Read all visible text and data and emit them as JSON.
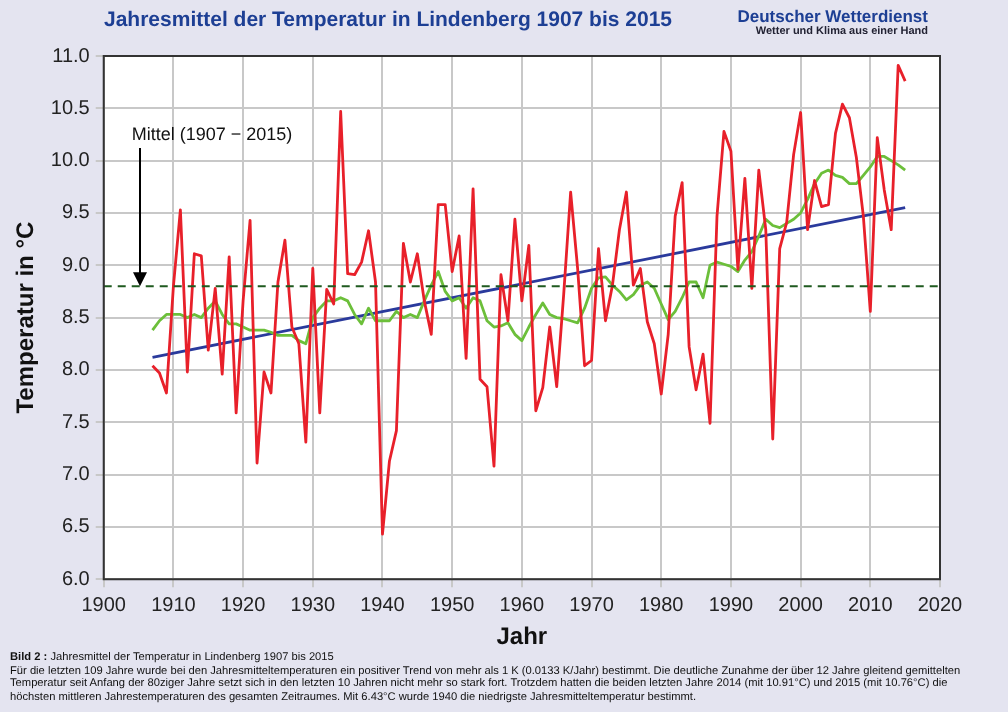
{
  "chart_data": {
    "type": "line",
    "title": "Jahresmittel der Temperatur in Lindenberg 1907 bis 2015",
    "xlabel": "Jahr",
    "ylabel": "Temperatur in °C",
    "annotations": [
      "Deutscher Wetterdienst",
      "Wetter und Klima aus einer Hand",
      "Bild 2 :",
      "Jahresmittel der Temperatur in Lindenberg 1907 bis 2015",
      "Für die letzten 109 Jahre wurde bei den Jahresmitteltemperaturen ein positiver Trend von mehr als 1 K (0.0133 K/Jahr) bestimmt. Die deutliche Zunahme der über 12 Jahre gleitend gemittelten Temperatur seit Anfang der 80ziger Jahre setzt sich in den letzten 10 Jahren nicht mehr so stark fort. Trotzdem hatten die beiden letzten Jahre 2014 (mit 10.91°C) und 2015 (mit 10.76°C) die höchsten mittleren Jahrestemperaturen des gesamten Zeitraumes. Mit 6.43°C wurde 1940 die niedrigste Jahresmitteltemperatur bestimmt."
    ],
    "x": [
      1907,
      1908,
      1909,
      1910,
      1911,
      1912,
      1913,
      1914,
      1915,
      1916,
      1917,
      1918,
      1919,
      1920,
      1921,
      1922,
      1923,
      1924,
      1925,
      1926,
      1927,
      1928,
      1929,
      1930,
      1931,
      1932,
      1933,
      1934,
      1935,
      1936,
      1937,
      1938,
      1939,
      1940,
      1941,
      1942,
      1943,
      1944,
      1945,
      1946,
      1947,
      1948,
      1949,
      1950,
      1951,
      1952,
      1953,
      1954,
      1955,
      1956,
      1957,
      1958,
      1959,
      1960,
      1961,
      1962,
      1963,
      1964,
      1965,
      1966,
      1967,
      1968,
      1969,
      1970,
      1971,
      1972,
      1973,
      1974,
      1975,
      1976,
      1977,
      1978,
      1979,
      1980,
      1981,
      1982,
      1983,
      1984,
      1985,
      1986,
      1987,
      1988,
      1989,
      1990,
      1991,
      1992,
      1993,
      1994,
      1995,
      1996,
      1997,
      1998,
      1999,
      2000,
      2001,
      2002,
      2003,
      2004,
      2005,
      2006,
      2007,
      2008,
      2009,
      2010,
      2011,
      2012,
      2013,
      2014,
      2015
    ],
    "series": [
      {
        "color": "#e8202a",
        "values": [
          8.04,
          7.97,
          7.78,
          8.8,
          9.53,
          7.98,
          9.11,
          9.09,
          8.19,
          8.78,
          7.96,
          9.08,
          7.59,
          8.66,
          9.43,
          7.11,
          7.98,
          7.78,
          8.84,
          9.24,
          8.41,
          8.25,
          7.31,
          8.97,
          7.59,
          8.77,
          8.63,
          10.47,
          8.92,
          8.91,
          9.03,
          9.33,
          8.84,
          6.43,
          7.13,
          7.42,
          9.21,
          8.84,
          9.11,
          8.66,
          8.34,
          9.58,
          9.58,
          8.94,
          9.28,
          8.11,
          9.73,
          7.91,
          7.84,
          7.08,
          8.91,
          8.47,
          9.44,
          8.66,
          9.19,
          7.61,
          7.83,
          8.41,
          7.84,
          8.72,
          9.7,
          8.97,
          8.04,
          8.09,
          9.16,
          8.47,
          8.81,
          9.34,
          9.7,
          8.81,
          8.97,
          8.46,
          8.25,
          7.77,
          8.34,
          9.47,
          9.79,
          8.22,
          7.81,
          8.15,
          7.49,
          9.47,
          10.28,
          10.09,
          8.96,
          9.83,
          8.78,
          9.91,
          9.34,
          7.34,
          9.16,
          9.41,
          10.06,
          10.46,
          9.34,
          9.81,
          9.56,
          9.58,
          10.26,
          10.54,
          10.41,
          10.03,
          9.47,
          8.56,
          10.22,
          9.72,
          9.34,
          10.91,
          10.76
        ]
      },
      {
        "color": "#6cbf3a",
        "values": [
          8.38,
          8.47,
          8.53,
          8.53,
          8.53,
          8.5,
          8.53,
          8.5,
          8.59,
          8.66,
          8.53,
          8.44,
          8.44,
          8.41,
          8.38,
          8.38,
          8.38,
          8.36,
          8.33,
          8.33,
          8.33,
          8.28,
          8.25,
          8.5,
          8.59,
          8.66,
          8.66,
          8.69,
          8.66,
          8.53,
          8.44,
          8.59,
          8.47,
          8.47,
          8.47,
          8.56,
          8.5,
          8.53,
          8.5,
          8.66,
          8.81,
          8.94,
          8.75,
          8.66,
          8.69,
          8.59,
          8.69,
          8.66,
          8.47,
          8.41,
          8.42,
          8.45,
          8.34,
          8.28,
          8.41,
          8.53,
          8.64,
          8.53,
          8.5,
          8.49,
          8.47,
          8.45,
          8.59,
          8.78,
          8.88,
          8.89,
          8.81,
          8.75,
          8.67,
          8.72,
          8.81,
          8.84,
          8.78,
          8.63,
          8.48,
          8.56,
          8.69,
          8.84,
          8.84,
          8.69,
          9.0,
          9.03,
          9.01,
          8.99,
          8.94,
          9.05,
          9.13,
          9.28,
          9.44,
          9.38,
          9.36,
          9.4,
          9.44,
          9.5,
          9.63,
          9.78,
          9.88,
          9.91,
          9.86,
          9.84,
          9.78,
          9.78,
          9.86,
          9.94,
          10.04,
          10.04,
          10.0,
          9.96,
          9.91
        ]
      },
      {
        "type": "line",
        "color": "#2a3a9c",
        "x": [
          1907,
          2015
        ],
        "values": [
          8.12,
          9.55
        ]
      }
    ],
    "xlim": [
      1900,
      2020
    ],
    "xticks": [
      1900,
      1910,
      1920,
      1930,
      1940,
      1950,
      1960,
      1970,
      1980,
      1990,
      2000,
      2010,
      2020
    ],
    "ylim": [
      6,
      11
    ],
    "yticks": [
      {
        "value": 6,
        "label": "6.0"
      },
      {
        "value": 6.5,
        "label": "6.5"
      },
      {
        "value": 7,
        "label": "7.0"
      },
      {
        "value": 7.5,
        "label": "7.5"
      },
      {
        "value": 8,
        "label": "8.0"
      },
      {
        "value": 8.5,
        "label": "8.5"
      },
      {
        "value": 9,
        "label": "9.0"
      },
      {
        "value": 9.5,
        "label": "9.5"
      },
      {
        "value": 10,
        "label": "10.0"
      },
      {
        "value": 10.5,
        "label": "10.5"
      },
      {
        "value": 11,
        "label": "11.0"
      }
    ],
    "ref_lines": [
      {
        "axis": "y",
        "value": 8.8,
        "label": "Mittel (1907 − 2015)",
        "color": "#1f5a1f",
        "line_style": "dashed"
      }
    ],
    "grid": true,
    "legend": false,
    "marker": "none",
    "line_style": "solid"
  }
}
